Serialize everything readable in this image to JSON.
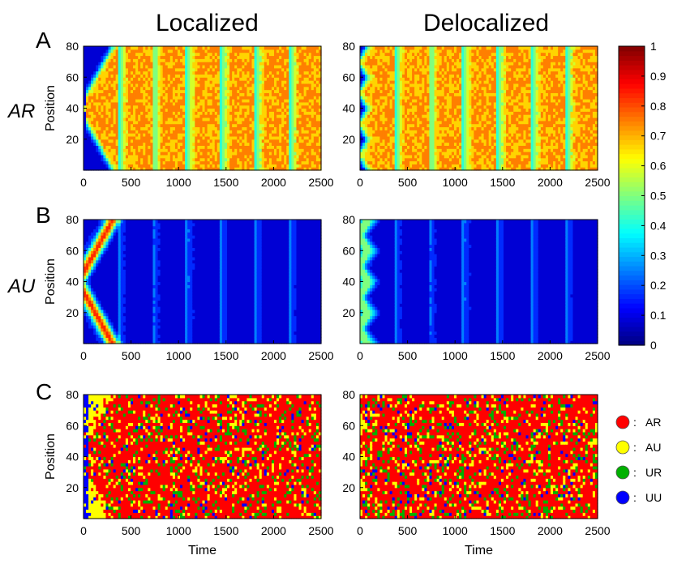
{
  "column_titles": [
    "Localized",
    "Delocalized"
  ],
  "panel_letters": [
    "A",
    "B",
    "C"
  ],
  "row_labels": [
    "AR",
    "AU"
  ],
  "colormap": [
    "#00007f",
    "#0000ff",
    "#007fff",
    "#00ffff",
    "#7fff7f",
    "#ffff00",
    "#ff7f00",
    "#ff0000",
    "#7f0000"
  ],
  "state_colors": {
    "AR": "#ff0000",
    "AU": "#ffff00",
    "UR": "#00b000",
    "UU": "#0000ff"
  },
  "chart_data": [
    {
      "type": "heatmap",
      "panel": "A",
      "column": "Localized",
      "row_label": "AR",
      "ylabel": "Position",
      "xlabel": "",
      "xlim": [
        0,
        2500
      ],
      "ylim": [
        0,
        80
      ],
      "xticks": [
        0,
        500,
        1000,
        1500,
        2000,
        2500
      ],
      "yticks": [
        20,
        40,
        60,
        80
      ],
      "origin": "center",
      "pattern": "expanding-front",
      "front_period": 360,
      "front_speed": 0.11,
      "plateau": 0.66
    },
    {
      "type": "heatmap",
      "panel": "A",
      "column": "Delocalized",
      "row_label": "AR",
      "ylabel": "",
      "xlabel": "",
      "xlim": [
        0,
        2500
      ],
      "ylim": [
        0,
        80
      ],
      "xticks": [
        0,
        500,
        1000,
        1500,
        2000,
        2500
      ],
      "yticks": [
        20,
        40,
        60,
        80
      ],
      "origin": "distributed",
      "pattern": "multi-nucleation",
      "front_period": 360,
      "plateau": 0.66
    },
    {
      "type": "heatmap",
      "panel": "B",
      "column": "Localized",
      "row_label": "AU",
      "ylabel": "Position",
      "xlabel": "",
      "xlim": [
        0,
        2500
      ],
      "ylim": [
        0,
        80
      ],
      "xticks": [
        0,
        500,
        1000,
        1500,
        2000,
        2500
      ],
      "yticks": [
        20,
        40,
        60,
        80
      ],
      "origin": "center",
      "pattern": "expanding-front",
      "front_period": 360,
      "front_speed": 0.11,
      "plateau": 0.12
    },
    {
      "type": "heatmap",
      "panel": "B",
      "column": "Delocalized",
      "row_label": "AU",
      "ylabel": "",
      "xlabel": "",
      "xlim": [
        0,
        2500
      ],
      "ylim": [
        0,
        80
      ],
      "xticks": [
        0,
        500,
        1000,
        1500,
        2000,
        2500
      ],
      "yticks": [
        20,
        40,
        60,
        80
      ],
      "origin": "distributed",
      "pattern": "multi-nucleation",
      "front_period": 360,
      "plateau": 0.12
    },
    {
      "type": "heatmap",
      "panel": "C",
      "column": "Localized",
      "ylabel": "Position",
      "xlabel": "Time",
      "xlim": [
        0,
        2500
      ],
      "ylim": [
        0,
        80
      ],
      "xticks": [
        0,
        500,
        1000,
        1500,
        2000,
        2500
      ],
      "yticks": [
        20,
        40,
        60,
        80
      ],
      "origin": "center",
      "pattern": "single-run-states",
      "states": [
        "AR",
        "AU",
        "UR",
        "UU"
      ]
    },
    {
      "type": "heatmap",
      "panel": "C",
      "column": "Delocalized",
      "ylabel": "",
      "xlabel": "Time",
      "xlim": [
        0,
        2500
      ],
      "ylim": [
        0,
        80
      ],
      "xticks": [
        0,
        500,
        1000,
        1500,
        2000,
        2500
      ],
      "yticks": [
        20,
        40,
        60,
        80
      ],
      "origin": "distributed",
      "pattern": "single-run-states",
      "states": [
        "AR",
        "AU",
        "UR",
        "UU"
      ]
    }
  ],
  "colorbar": {
    "min": 0,
    "max": 1,
    "ticks": [
      0,
      0.1,
      0.2,
      0.3,
      0.4,
      0.5,
      0.6,
      0.7,
      0.8,
      0.9,
      1
    ],
    "tick_labels": [
      "0",
      "0.1",
      "0.2",
      "0.3",
      "0.4",
      "0.5",
      "0.6",
      "0.7",
      "0.8",
      "0.9",
      "1"
    ]
  },
  "legend": [
    {
      "label": "AR",
      "color": "#ff0000"
    },
    {
      "label": "AU",
      "color": "#ffff00"
    },
    {
      "label": "UR",
      "color": "#00b000"
    },
    {
      "label": "UU",
      "color": "#0000ff"
    }
  ],
  "legend_separator": ":"
}
